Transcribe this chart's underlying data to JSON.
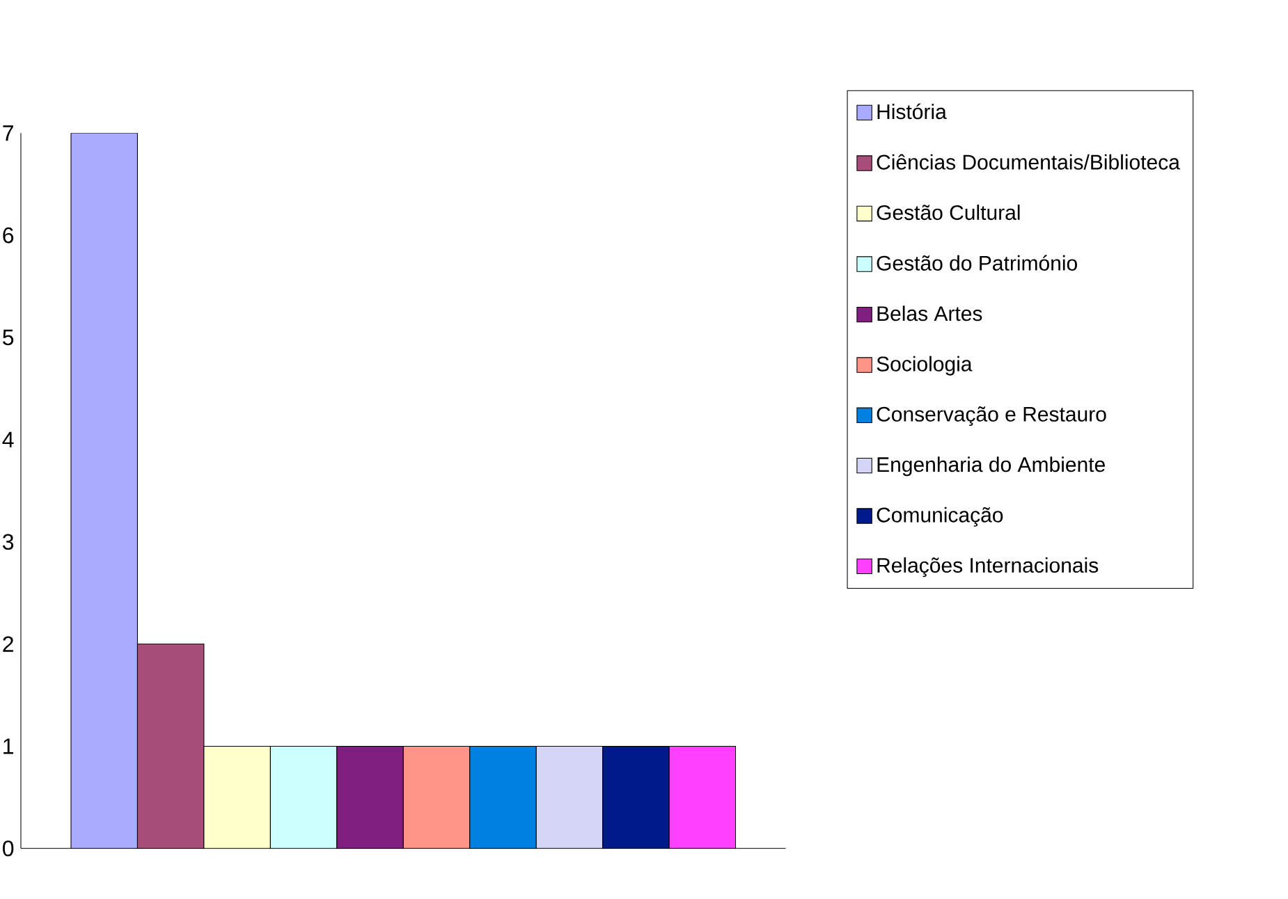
{
  "chart_data": {
    "type": "bar",
    "categories": [
      null
    ],
    "series": [
      {
        "name": "História",
        "color": "#aaaaff",
        "values": [
          7
        ]
      },
      {
        "name": "Ciências Documentais/Biblioteca",
        "color": "#a64d79",
        "values": [
          2
        ]
      },
      {
        "name": "Gestão Cultural",
        "color": "#ffffcc",
        "values": [
          1
        ]
      },
      {
        "name": "Gestão do Património",
        "color": "#ccffff",
        "values": [
          1
        ]
      },
      {
        "name": "Belas Artes",
        "color": "#7f1f7f",
        "values": [
          1
        ]
      },
      {
        "name": "Sociologia",
        "color": "#ff9488",
        "values": [
          1
        ]
      },
      {
        "name": "Conservação e Restauro",
        "color": "#0080e0",
        "values": [
          1
        ]
      },
      {
        "name": "Engenharia do Ambiente",
        "color": "#d5d5f8",
        "values": [
          1
        ]
      },
      {
        "name": "Comunicação",
        "color": "#001a8c",
        "values": [
          1
        ]
      },
      {
        "name": "Relações Internacionais",
        "color": "#ff40ff",
        "values": [
          1
        ]
      }
    ],
    "ylim": [
      0,
      7
    ],
    "yticks": [
      0,
      1,
      2,
      3,
      4,
      5,
      6,
      7
    ],
    "legend": "right"
  }
}
